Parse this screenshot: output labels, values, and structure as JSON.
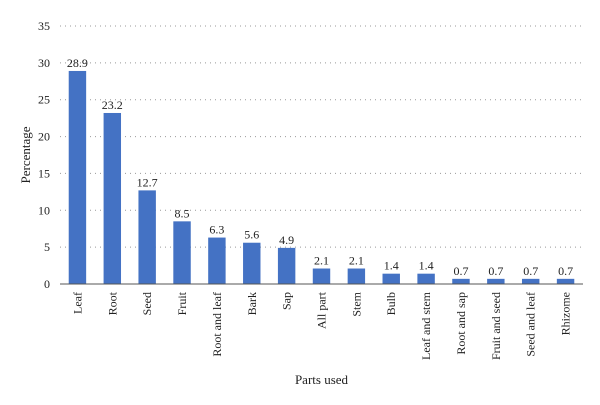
{
  "chart_data": {
    "type": "bar",
    "title": "",
    "xlabel": "Parts used",
    "ylabel": "Percentage",
    "ylim": [
      0,
      35
    ],
    "yticks": [
      0,
      5,
      10,
      15,
      20,
      25,
      30,
      35
    ],
    "grid": true,
    "bar_color": "#4472C4",
    "categories": [
      "Leaf",
      "Root",
      "Seed",
      "Fruit",
      "Root and leaf",
      "Bark",
      "Sap",
      "All part",
      "Stem",
      "Bulb",
      "Leaf and stem",
      "Root and sap",
      "Fruit and seed",
      "Seed and leaf",
      "Rhizome"
    ],
    "values": [
      28.9,
      23.2,
      12.7,
      8.5,
      6.3,
      5.6,
      4.9,
      2.1,
      2.1,
      1.4,
      1.4,
      0.7,
      0.7,
      0.7,
      0.7
    ],
    "value_labels": [
      "28.9",
      "23.2",
      "12.7",
      "8.5",
      "6.3",
      "5.6",
      "4.9",
      "2.1",
      "2.1",
      "1.4",
      "1.4",
      "0.7",
      "0.7",
      "0.7",
      "0.7"
    ]
  }
}
